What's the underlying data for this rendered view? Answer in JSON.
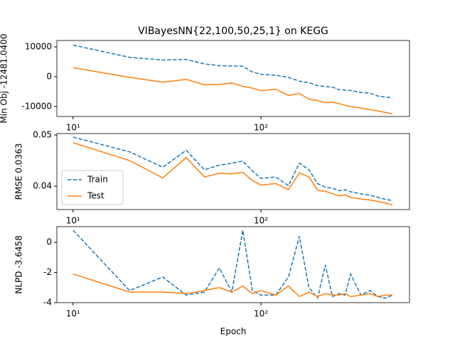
{
  "chart_data": [
    {
      "type": "line",
      "title": "VIBayesNN{22,100,50,25,1} on KEGG",
      "ylabel": "Min Obj -12481.0400",
      "xscale": "log",
      "xlim": [
        8.2,
        617
      ],
      "xticks": [
        {
          "value": 10,
          "label": "10¹"
        },
        {
          "value": 100,
          "label": "10²"
        }
      ],
      "ylim": [
        -13333,
        12143
      ],
      "yticks": [
        10000,
        0,
        -10000
      ],
      "x": [
        10,
        20,
        30,
        40,
        50,
        60,
        70,
        80,
        90,
        100,
        120,
        140,
        160,
        180,
        200,
        220,
        240,
        260,
        280,
        300,
        340,
        380,
        420,
        460,
        500
      ],
      "series": [
        {
          "color": "#1f77b4",
          "linestyle": "dashed",
          "values": [
            10600,
            6500,
            5600,
            5800,
            4300,
            3700,
            3600,
            3500,
            1600,
            800,
            500,
            -200,
            -1500,
            -2000,
            -3000,
            -3300,
            -3500,
            -4300,
            -4500,
            -4600,
            -5300,
            -5500,
            -6500,
            -6800,
            -7000
          ]
        },
        {
          "color": "#ff7f0e",
          "linestyle": "solid",
          "values": [
            3000,
            -200,
            -1800,
            -900,
            -2700,
            -2600,
            -2100,
            -3200,
            -3800,
            -4700,
            -4200,
            -6300,
            -5600,
            -7500,
            -8000,
            -8700,
            -8600,
            -9000,
            -9600,
            -10000,
            -10500,
            -11000,
            -11500,
            -12000,
            -12400
          ]
        }
      ]
    },
    {
      "type": "line",
      "ylabel": "RMSE 0.0363",
      "legend": "lower left",
      "xscale": "log",
      "xlim": [
        8.2,
        617
      ],
      "xticks": [
        {
          "value": 10,
          "label": "10¹"
        },
        {
          "value": 100,
          "label": "10²"
        }
      ],
      "ylim": [
        0.03542,
        0.05028
      ],
      "yticks": [
        0.05,
        0.04
      ],
      "x": [
        10,
        20,
        30,
        40,
        50,
        60,
        70,
        80,
        90,
        100,
        120,
        140,
        160,
        180,
        200,
        220,
        240,
        260,
        280,
        300,
        340,
        380,
        420,
        460,
        500
      ],
      "series": [
        {
          "name": "Train",
          "color": "#1f77b4",
          "linestyle": "dashed",
          "values": [
            0.0496,
            0.0467,
            0.0437,
            0.047,
            0.0432,
            0.0441,
            0.0445,
            0.0449,
            0.043,
            0.0415,
            0.0418,
            0.0401,
            0.0445,
            0.0432,
            0.0405,
            0.0398,
            0.0396,
            0.0391,
            0.0393,
            0.0389,
            0.0385,
            0.0382,
            0.0378,
            0.0374,
            0.0372
          ]
        },
        {
          "name": "Test",
          "color": "#ff7f0e",
          "linestyle": "solid",
          "values": [
            0.0485,
            0.045,
            0.0416,
            0.0456,
            0.0418,
            0.0425,
            0.0424,
            0.0427,
            0.0411,
            0.0402,
            0.0405,
            0.0393,
            0.0426,
            0.0418,
            0.0392,
            0.039,
            0.0385,
            0.0381,
            0.0383,
            0.0378,
            0.0375,
            0.0373,
            0.037,
            0.0367,
            0.0363
          ]
        }
      ]
    },
    {
      "type": "line",
      "ylabel": "NLPD -3.6458",
      "xlabel": "Epoch",
      "xscale": "log",
      "xlim": [
        8.2,
        617
      ],
      "xticks": [
        {
          "value": 10,
          "label": "10¹"
        },
        {
          "value": 100,
          "label": "10²"
        }
      ],
      "ylim": [
        -4,
        1.04
      ],
      "yticks": [
        0,
        -2,
        -4
      ],
      "x": [
        10,
        20,
        30,
        40,
        50,
        60,
        70,
        80,
        90,
        100,
        120,
        140,
        160,
        180,
        200,
        220,
        240,
        260,
        280,
        300,
        340,
        380,
        420,
        460,
        500
      ],
      "series": [
        {
          "color": "#1f77b4",
          "linestyle": "dashed",
          "values": [
            0.8,
            -3.2,
            -2.3,
            -3.5,
            -3.3,
            -1.7,
            -3.3,
            0.8,
            -3.2,
            -3.5,
            -3.5,
            -2.3,
            0.4,
            -3.0,
            -3.7,
            -1.5,
            -3.6,
            -3.4,
            -3.5,
            -2.1,
            -3.5,
            -3.2,
            -3.6,
            -3.7,
            -3.5
          ]
        },
        {
          "color": "#ff7f0e",
          "linestyle": "solid",
          "values": [
            -2.1,
            -3.3,
            -3.3,
            -3.4,
            -3.2,
            -3.0,
            -3.3,
            -2.9,
            -3.4,
            -3.2,
            -3.5,
            -2.9,
            -3.6,
            -3.3,
            -3.6,
            -3.4,
            -3.5,
            -3.5,
            -3.4,
            -3.6,
            -3.5,
            -3.4,
            -3.6,
            -3.5,
            -3.5
          ]
        }
      ]
    }
  ]
}
